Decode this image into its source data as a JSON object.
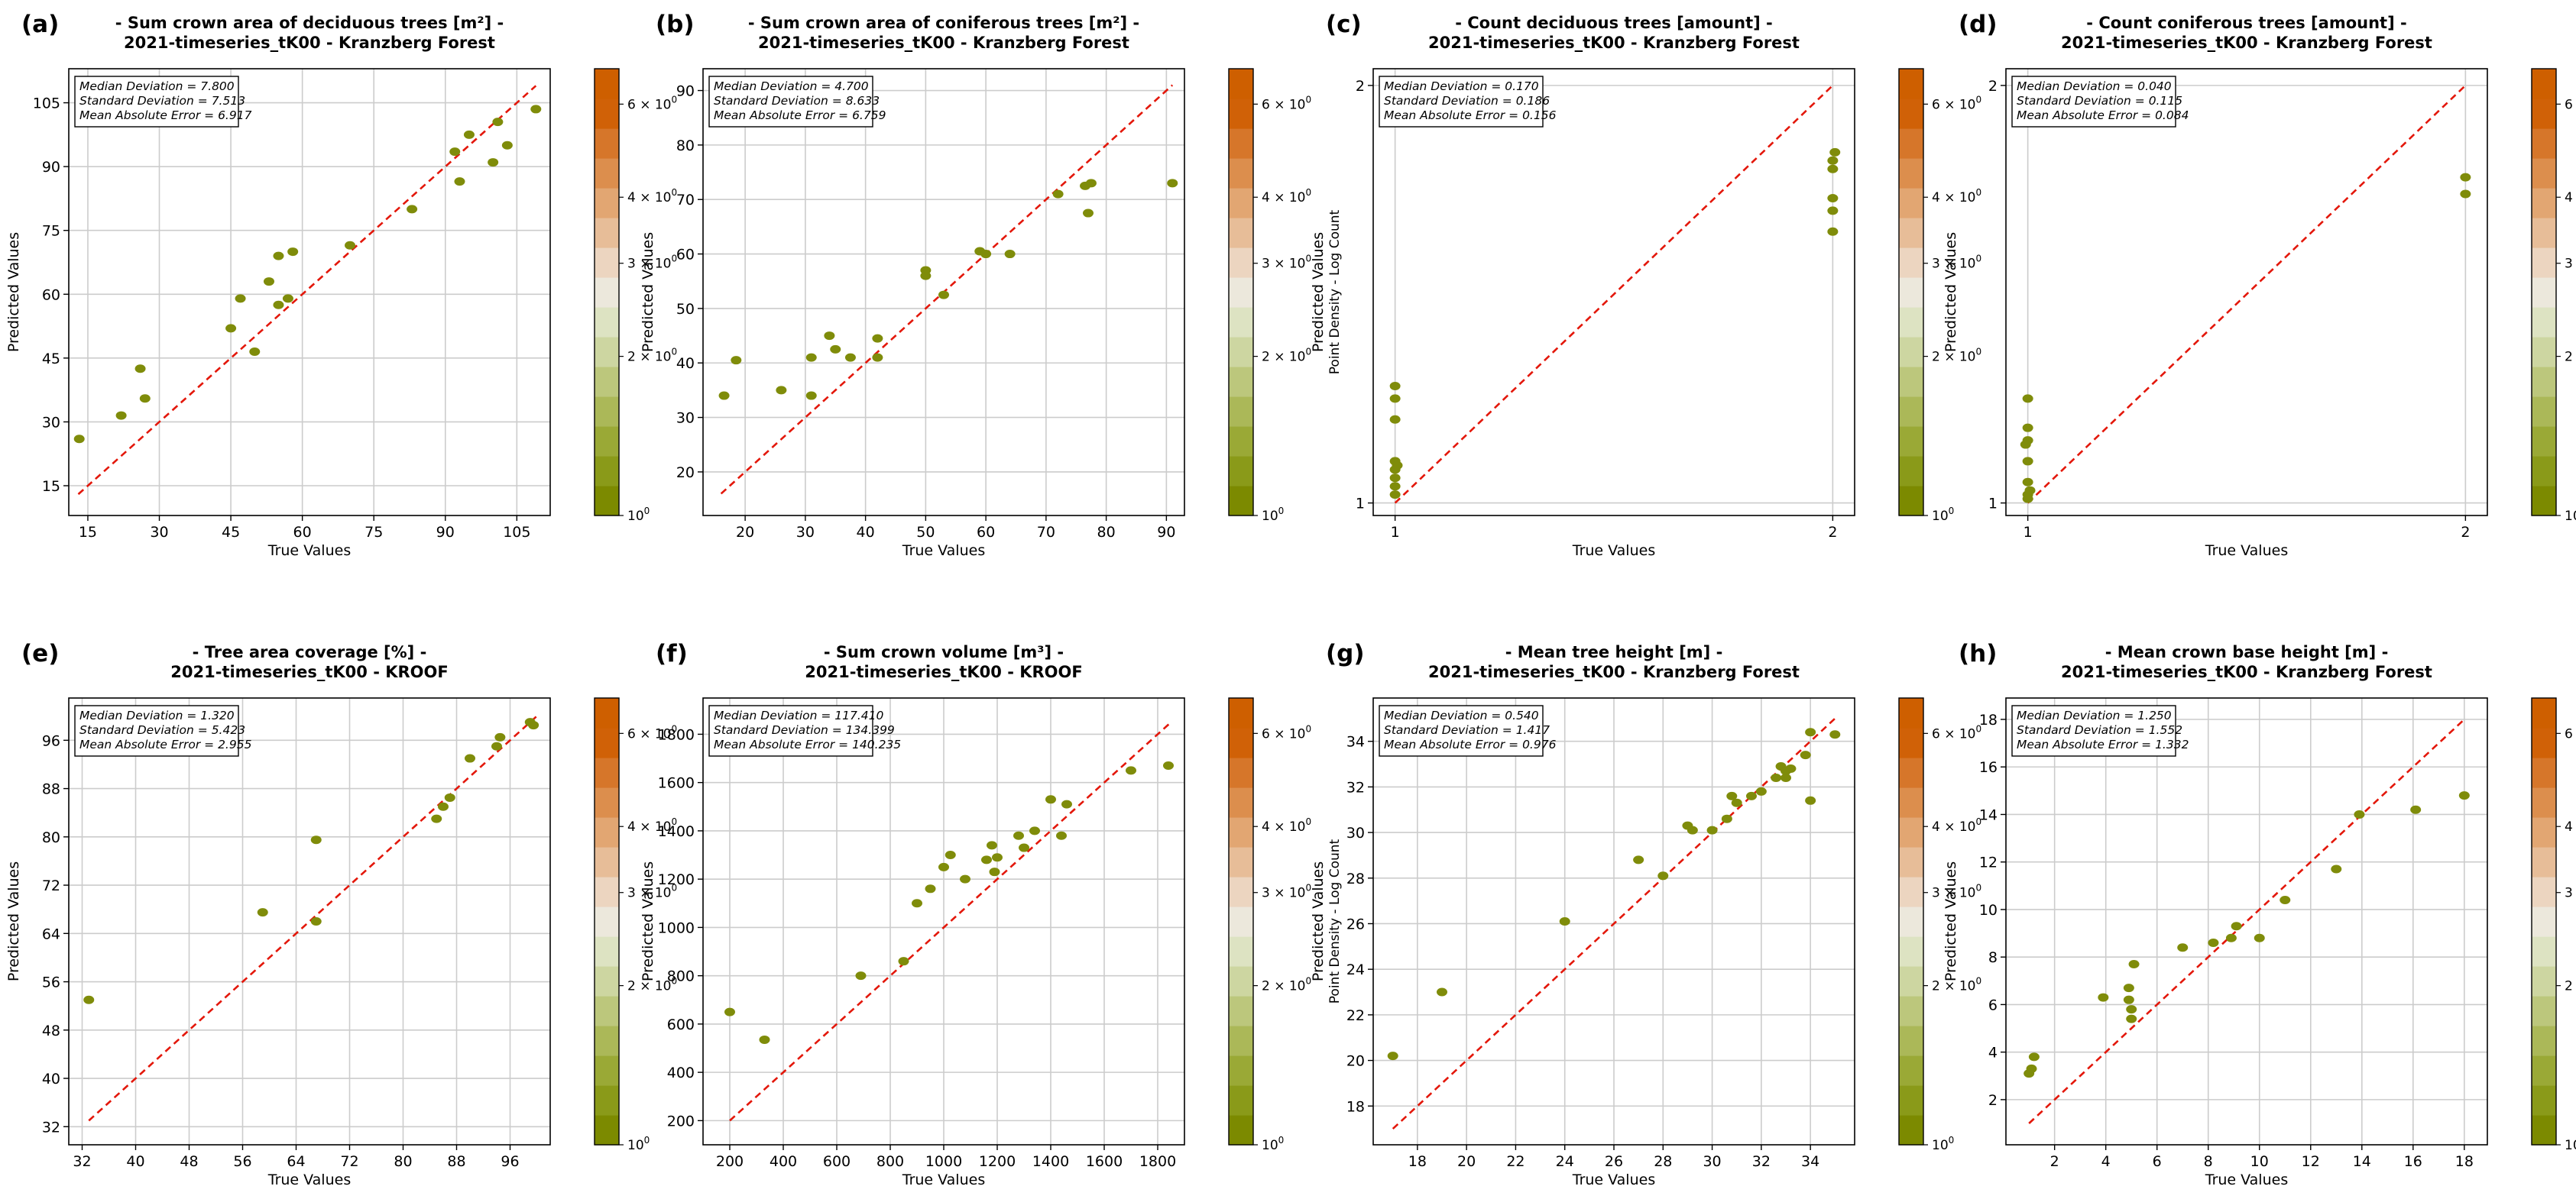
{
  "colors": {
    "point": "#7f8c0a",
    "diagonal": "#e3170a",
    "grid": "#cccccc",
    "colormap": [
      "#7c8a00",
      "#8a9a19",
      "#9aa936",
      "#abb858",
      "#bcc77c",
      "#cdd6a1",
      "#dde3c2",
      "#ece8dc",
      "#ecd5c0",
      "#e7bd98",
      "#e2a672",
      "#dc8e4d",
      "#d6762a",
      "#d06107",
      "#ce5f00"
    ]
  },
  "colorbar": {
    "label": "Point Density - Log Count",
    "ticks": [
      {
        "base": "10",
        "exp": "0",
        "value": 1
      },
      {
        "base": "2 × 10",
        "exp": "0",
        "value": 2
      },
      {
        "base": "3 × 10",
        "exp": "0",
        "value": 3
      },
      {
        "base": "4 × 10",
        "exp": "0",
        "value": 4
      },
      {
        "base": "6 × 10",
        "exp": "0",
        "value": 6
      }
    ],
    "min": 1,
    "max": 7
  },
  "chart_data": [
    {
      "panel_label": "(a)",
      "type": "scatter",
      "title_line1": "- Sum crown area of deciduous trees [m²] -",
      "title_line2": "2021-timeseries_tK00 - Kranzberg Forest",
      "xlabel": "True Values",
      "ylabel": "Predicted Values",
      "xlim": [
        11,
        112
      ],
      "ylim": [
        8,
        113
      ],
      "xticks": [
        15,
        30,
        45,
        60,
        75,
        90,
        105
      ],
      "yticks": [
        15,
        30,
        45,
        60,
        75,
        90,
        105
      ],
      "xtick_labels": [
        "15",
        "30",
        "45",
        "60",
        "75",
        "90",
        "105"
      ],
      "ytick_labels": [
        "15",
        "30",
        "45",
        "60",
        "75",
        "90",
        "105"
      ],
      "stats": [
        "Median Deviation = 7.800",
        "Standard Deviation = 7.513",
        "Mean Absolute Error = 6.917"
      ],
      "diagonal": [
        13,
        109
      ],
      "show_colorbar_label": false,
      "points": [
        [
          13.2,
          26
        ],
        [
          22,
          31.5
        ],
        [
          26,
          42.5
        ],
        [
          27,
          35.5
        ],
        [
          45,
          52
        ],
        [
          47,
          59
        ],
        [
          50,
          46.5
        ],
        [
          53,
          63
        ],
        [
          55,
          69
        ],
        [
          55,
          57.5
        ],
        [
          57,
          59
        ],
        [
          58,
          70
        ],
        [
          70,
          71.5
        ],
        [
          83,
          80
        ],
        [
          92,
          93.5
        ],
        [
          93,
          86.5
        ],
        [
          95,
          97.5
        ],
        [
          100,
          91
        ],
        [
          101,
          100.5
        ],
        [
          103,
          95
        ],
        [
          109,
          103.5
        ]
      ]
    },
    {
      "panel_label": "(b)",
      "type": "scatter",
      "title_line1": "- Sum crown area of coniferous trees [m²] -",
      "title_line2": "2021-timeseries_tK00 - Kranzberg Forest",
      "xlabel": "True Values",
      "ylabel": "Predicted Values",
      "xlim": [
        13,
        93
      ],
      "ylim": [
        12,
        94
      ],
      "xticks": [
        20,
        30,
        40,
        50,
        60,
        70,
        80,
        90
      ],
      "yticks": [
        20,
        30,
        40,
        50,
        60,
        70,
        80,
        90
      ],
      "xtick_labels": [
        "20",
        "30",
        "40",
        "50",
        "60",
        "70",
        "80",
        "90"
      ],
      "ytick_labels": [
        "20",
        "30",
        "40",
        "50",
        "60",
        "70",
        "80",
        "90"
      ],
      "stats": [
        "Median Deviation = 4.700",
        "Standard Deviation = 8.633",
        "Mean Absolute Error = 6.759"
      ],
      "diagonal": [
        16,
        91
      ],
      "show_colorbar_label": true,
      "points": [
        [
          16.5,
          34
        ],
        [
          18.5,
          40.5
        ],
        [
          26,
          35
        ],
        [
          31,
          41
        ],
        [
          31,
          34
        ],
        [
          34,
          45
        ],
        [
          35,
          42.5
        ],
        [
          37.5,
          41
        ],
        [
          42,
          41
        ],
        [
          42,
          44.5
        ],
        [
          50,
          57
        ],
        [
          50,
          56
        ],
        [
          53,
          52.5
        ],
        [
          59,
          60.5
        ],
        [
          60,
          60
        ],
        [
          64,
          60
        ],
        [
          72,
          71
        ],
        [
          76.5,
          72.5
        ],
        [
          77,
          67.5
        ],
        [
          77.5,
          73
        ],
        [
          91,
          73
        ]
      ]
    },
    {
      "panel_label": "(c)",
      "type": "scatter",
      "title_line1": "- Count deciduous trees [amount] -",
      "title_line2": "2021-timeseries_tK00 - Kranzberg Forest",
      "xlabel": "True Values",
      "ylabel": "Predicted Values",
      "xlim": [
        0.95,
        2.05
      ],
      "ylim": [
        0.97,
        2.04
      ],
      "xticks": [
        1,
        2
      ],
      "yticks": [
        1,
        2
      ],
      "xtick_labels": [
        "1",
        "2"
      ],
      "ytick_labels": [
        "1",
        "2"
      ],
      "stats": [
        "Median Deviation = 0.170",
        "Standard Deviation = 0.186",
        "Mean Absolute Error = 0.156"
      ],
      "diagonal": [
        1,
        2
      ],
      "show_colorbar_label": false,
      "points": [
        [
          1,
          1.28
        ],
        [
          1,
          1.25
        ],
        [
          1,
          1.2
        ],
        [
          1,
          1.1
        ],
        [
          1,
          1.08
        ],
        [
          1,
          1.06
        ],
        [
          1,
          1.04
        ],
        [
          1,
          1.02
        ],
        [
          1.005,
          1.09
        ],
        [
          2,
          1.82
        ],
        [
          2,
          1.8
        ],
        [
          2,
          1.73
        ],
        [
          2,
          1.7
        ],
        [
          2,
          1.65
        ],
        [
          2.005,
          1.84
        ]
      ]
    },
    {
      "panel_label": "(d)",
      "type": "scatter",
      "title_line1": "- Count coniferous trees [amount] -",
      "title_line2": "2021-timeseries_tK00 - Kranzberg Forest",
      "xlabel": "True Values",
      "ylabel": "Predicted Values",
      "xlim": [
        0.95,
        2.05
      ],
      "ylim": [
        0.97,
        2.04
      ],
      "xticks": [
        1,
        2
      ],
      "yticks": [
        1,
        2
      ],
      "xtick_labels": [
        "1",
        "2"
      ],
      "ytick_labels": [
        "1",
        "2"
      ],
      "stats": [
        "Median Deviation = 0.040",
        "Standard Deviation = 0.115",
        "Mean Absolute Error = 0.084"
      ],
      "diagonal": [
        1,
        2
      ],
      "show_colorbar_label": true,
      "points": [
        [
          1,
          1.25
        ],
        [
          1,
          1.18
        ],
        [
          1,
          1.15
        ],
        [
          0.995,
          1.14
        ],
        [
          1,
          1.1
        ],
        [
          1,
          1.05
        ],
        [
          1.005,
          1.03
        ],
        [
          1,
          1.02
        ],
        [
          1,
          1.01
        ],
        [
          2,
          1.78
        ],
        [
          2,
          1.74
        ]
      ]
    },
    {
      "panel_label": "(e)",
      "type": "scatter",
      "title_line1": "- Tree area coverage [%] -",
      "title_line2": "2021-timeseries_tK00 - KROOF",
      "xlabel": "True Values",
      "ylabel": "Predicted Values",
      "xlim": [
        30,
        102
      ],
      "ylim": [
        29,
        103
      ],
      "xticks": [
        32,
        40,
        48,
        56,
        64,
        72,
        80,
        88,
        96
      ],
      "yticks": [
        32,
        40,
        48,
        56,
        64,
        72,
        80,
        88,
        96
      ],
      "xtick_labels": [
        "32",
        "40",
        "48",
        "56",
        "64",
        "72",
        "80",
        "88",
        "96"
      ],
      "ytick_labels": [
        "32",
        "40",
        "48",
        "56",
        "64",
        "72",
        "80",
        "88",
        "96"
      ],
      "stats": [
        "Median Deviation = 1.320",
        "Standard Deviation = 5.423",
        "Mean Absolute Error = 2.955"
      ],
      "diagonal": [
        33,
        100
      ],
      "show_colorbar_label": false,
      "points": [
        [
          33,
          53
        ],
        [
          59,
          67.5
        ],
        [
          67,
          79.5
        ],
        [
          67,
          66
        ],
        [
          85,
          83
        ],
        [
          86,
          85
        ],
        [
          87,
          86.5
        ],
        [
          90,
          93
        ],
        [
          94,
          95
        ],
        [
          94.5,
          96.5
        ],
        [
          99,
          99
        ],
        [
          99.5,
          98.5
        ]
      ]
    },
    {
      "panel_label": "(f)",
      "type": "scatter",
      "title_line1": "- Sum crown volume [m³] -",
      "title_line2": "2021-timeseries_tK00 - KROOF",
      "xlabel": "True Values",
      "ylabel": "Predicted Values",
      "xlim": [
        100,
        1900
      ],
      "ylim": [
        100,
        1950
      ],
      "xticks": [
        200,
        400,
        600,
        800,
        1000,
        1200,
        1400,
        1600,
        1800
      ],
      "yticks": [
        200,
        400,
        600,
        800,
        1000,
        1200,
        1400,
        1600,
        1800
      ],
      "xtick_labels": [
        "200",
        "400",
        "600",
        "800",
        "1000",
        "1200",
        "1400",
        "1600",
        "1800"
      ],
      "ytick_labels": [
        "200",
        "400",
        "600",
        "800",
        "1000",
        "1200",
        "1400",
        "1600",
        "1800"
      ],
      "stats": [
        "Median Deviation = 117.410",
        "Standard Deviation = 134.399",
        "Mean Absolute Error = 140.235"
      ],
      "diagonal": [
        200,
        1850
      ],
      "show_colorbar_label": true,
      "points": [
        [
          200,
          650
        ],
        [
          330,
          535
        ],
        [
          690,
          800
        ],
        [
          850,
          860
        ],
        [
          900,
          1100
        ],
        [
          950,
          1160
        ],
        [
          1000,
          1250
        ],
        [
          1025,
          1300
        ],
        [
          1080,
          1200
        ],
        [
          1160,
          1280
        ],
        [
          1180,
          1340
        ],
        [
          1190,
          1230
        ],
        [
          1200,
          1290
        ],
        [
          1280,
          1380
        ],
        [
          1300,
          1330
        ],
        [
          1340,
          1400
        ],
        [
          1400,
          1530
        ],
        [
          1440,
          1380
        ],
        [
          1460,
          1510
        ],
        [
          1700,
          1650
        ],
        [
          1840,
          1670
        ]
      ]
    },
    {
      "panel_label": "(g)",
      "type": "scatter",
      "title_line1": "- Mean tree height [m] -",
      "title_line2": "2021-timeseries_tK00 - Kranzberg Forest",
      "xlabel": "True Values",
      "ylabel": "Predicted Values",
      "xlim": [
        16.2,
        35.8
      ],
      "ylim": [
        16.3,
        35.9
      ],
      "xticks": [
        18,
        20,
        22,
        24,
        26,
        28,
        30,
        32,
        34
      ],
      "yticks": [
        18,
        20,
        22,
        24,
        26,
        28,
        30,
        32,
        34
      ],
      "xtick_labels": [
        "18",
        "20",
        "22",
        "24",
        "26",
        "28",
        "30",
        "32",
        "34"
      ],
      "ytick_labels": [
        "18",
        "20",
        "22",
        "24",
        "26",
        "28",
        "30",
        "32",
        "34"
      ],
      "stats": [
        "Median Deviation = 0.540",
        "Standard Deviation = 1.417",
        "Mean Absolute Error = 0.976"
      ],
      "diagonal": [
        17,
        35
      ],
      "show_colorbar_label": false,
      "points": [
        [
          17,
          20.2
        ],
        [
          19,
          23
        ],
        [
          24,
          26.1
        ],
        [
          27,
          28.8
        ],
        [
          28,
          28.1
        ],
        [
          29,
          30.3
        ],
        [
          29.2,
          30.1
        ],
        [
          30,
          30.1
        ],
        [
          30.6,
          30.6
        ],
        [
          30.8,
          31.6
        ],
        [
          31,
          31.3
        ],
        [
          31.6,
          31.6
        ],
        [
          32,
          31.8
        ],
        [
          32.6,
          32.4
        ],
        [
          32.8,
          32.9
        ],
        [
          33,
          32.4
        ],
        [
          33,
          32.7
        ],
        [
          33.2,
          32.8
        ],
        [
          33.8,
          33.4
        ],
        [
          34,
          34.4
        ],
        [
          34,
          31.4
        ],
        [
          35,
          34.3
        ]
      ]
    },
    {
      "panel_label": "(h)",
      "type": "scatter",
      "title_line1": "- Mean crown base height [m] -",
      "title_line2": "2021-timeseries_tK00 - Kranzberg Forest",
      "xlabel": "True Values",
      "ylabel": "Predicted Values",
      "xlim": [
        0.1,
        18.9
      ],
      "ylim": [
        0.1,
        18.9
      ],
      "xticks": [
        2,
        4,
        6,
        8,
        10,
        12,
        14,
        16,
        18
      ],
      "yticks": [
        2,
        4,
        6,
        8,
        10,
        12,
        14,
        16,
        18
      ],
      "xtick_labels": [
        "2",
        "4",
        "6",
        "8",
        "10",
        "12",
        "14",
        "16",
        "18"
      ],
      "ytick_labels": [
        "2",
        "4",
        "6",
        "8",
        "10",
        "12",
        "14",
        "16",
        "18"
      ],
      "stats": [
        "Median Deviation = 1.250",
        "Standard Deviation = 1.552",
        "Mean Absolute Error = 1.332"
      ],
      "diagonal": [
        1,
        18
      ],
      "show_colorbar_label": true,
      "points": [
        [
          1,
          3.1
        ],
        [
          1.1,
          3.3
        ],
        [
          1.2,
          3.8
        ],
        [
          3.9,
          6.3
        ],
        [
          4.9,
          6.7
        ],
        [
          4.9,
          6.2
        ],
        [
          5,
          5.8
        ],
        [
          5,
          5.4
        ],
        [
          5.1,
          7.7
        ],
        [
          7,
          8.4
        ],
        [
          8.2,
          8.6
        ],
        [
          8.9,
          8.8
        ],
        [
          9.1,
          9.3
        ],
        [
          10,
          8.8
        ],
        [
          11,
          10.4
        ],
        [
          13,
          11.7
        ],
        [
          13.9,
          14
        ],
        [
          16.1,
          14.2
        ],
        [
          18,
          14.8
        ]
      ]
    }
  ]
}
